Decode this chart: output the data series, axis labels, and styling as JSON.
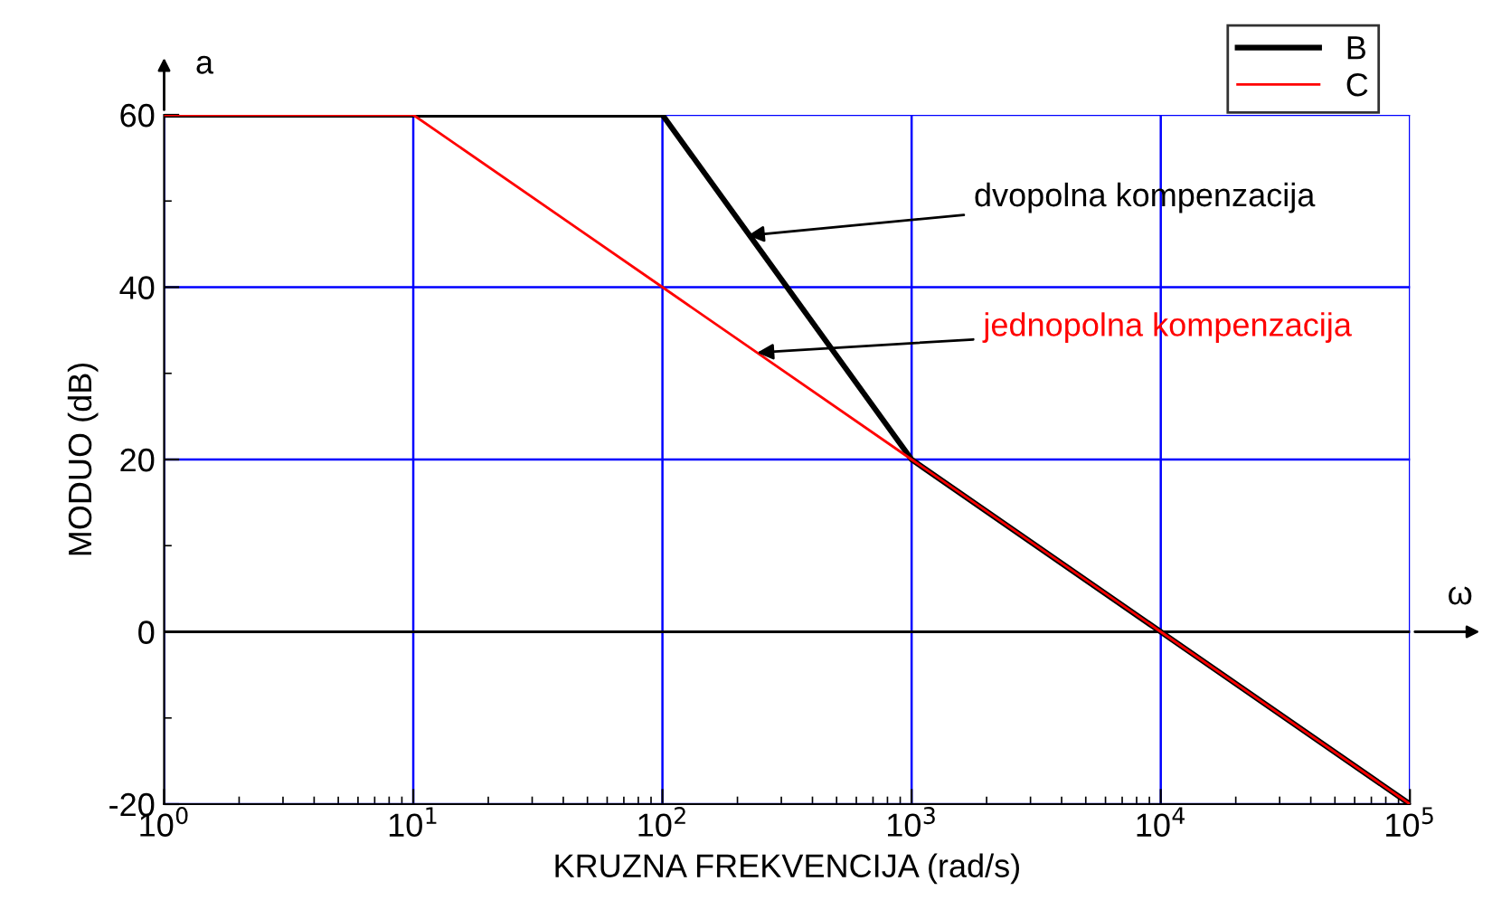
{
  "chart_data": {
    "type": "line",
    "xlabel": "KRUZNA FREKVENCIJA (rad/s)",
    "ylabel": "MODUO (dB)",
    "x": [
      1,
      10,
      100,
      1000,
      10000,
      100000
    ],
    "series": [
      {
        "name": "B",
        "color": "#000000",
        "values": [
          60,
          60,
          60,
          20,
          0,
          -20
        ]
      },
      {
        "name": "C",
        "color": "#ff0000",
        "values": [
          60,
          60,
          40,
          20,
          0,
          -20
        ]
      }
    ],
    "log": "x",
    "xlim": [
      1,
      100000
    ],
    "ylim": [
      -20,
      60
    ],
    "xticks": [
      {
        "value": 1,
        "label": "10$^{0}$"
      },
      {
        "value": 10,
        "label": "10$^{1}$"
      },
      {
        "value": 100,
        "label": "10$^{2}$"
      },
      {
        "value": 1000,
        "label": "10$^{3}$"
      },
      {
        "value": 10000,
        "label": "10$^{4}$"
      },
      {
        "value": 100000,
        "label": "10$^{5}$"
      }
    ],
    "yticks": [
      -20,
      0,
      20,
      40,
      60
    ],
    "grid": true,
    "legend": "top right",
    "marker": "none",
    "line_style": "solid",
    "ref_lines": [
      {
        "axis": "y",
        "value": 0,
        "color": "#000000"
      }
    ],
    "annotations": [
      "a",
      "ω",
      {
        "text": "dvopolna kompenzacija",
        "x": 220,
        "y": 46
      },
      {
        "text": "jednopolna kompenzacija",
        "x": 240,
        "y": 32.4
      }
    ]
  }
}
